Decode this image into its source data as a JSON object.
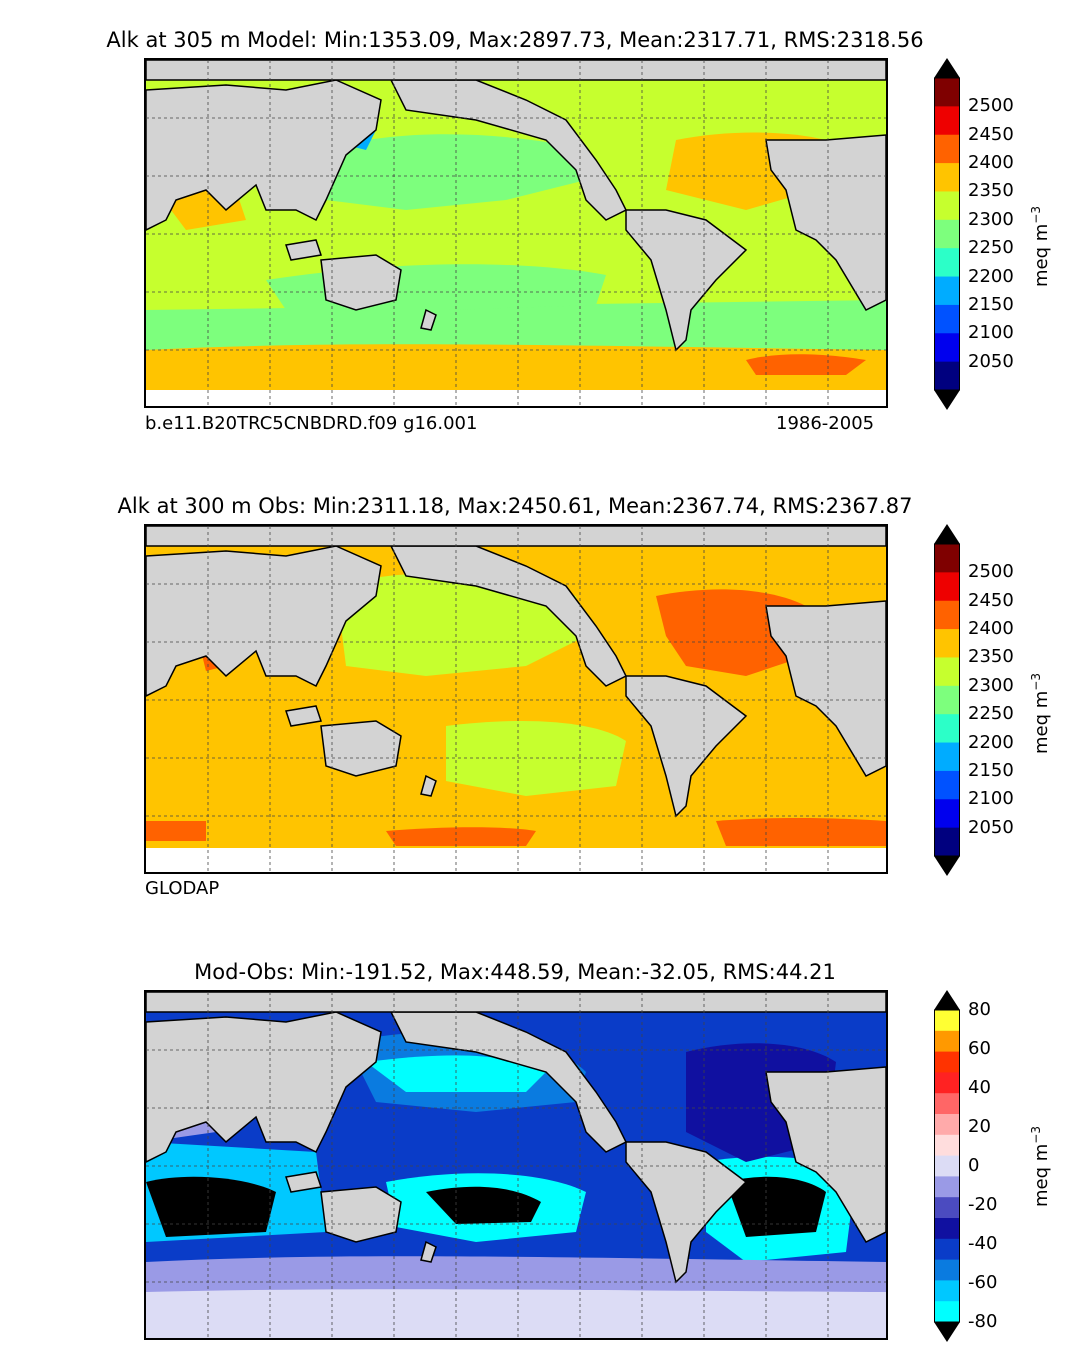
{
  "panels": [
    {
      "title": "Alk at 305 m Model: Min:1353.09, Max:2897.73, Mean:2317.71, RMS:2318.56",
      "note_left": "b.e11.B20TRC5CNBDRD.f09 g16.001",
      "note_right": "1986-2005",
      "unit": "meq m",
      "unit_exp": "−3",
      "ticks": [
        "2500",
        "2450",
        "2400",
        "2350",
        "2300",
        "2250",
        "2200",
        "2150",
        "2100",
        "2050"
      ],
      "colors": [
        "#7f0000",
        "#ee0000",
        "#ff6200",
        "#ffc400",
        "#c6ff2e",
        "#7dff7d",
        "#2cffc8",
        "#00acff",
        "#0052ff",
        "#0000ee",
        "#00007f"
      ]
    },
    {
      "title": "Alk at 300 m Obs: Min:2311.18, Max:2450.61, Mean:2367.74, RMS:2367.87",
      "note_left": "GLODAP",
      "note_right": "",
      "unit": "meq m",
      "unit_exp": "−3",
      "ticks": [
        "2500",
        "2450",
        "2400",
        "2350",
        "2300",
        "2250",
        "2200",
        "2150",
        "2100",
        "2050"
      ],
      "colors": [
        "#7f0000",
        "#ee0000",
        "#ff6200",
        "#ffc400",
        "#c6ff2e",
        "#7dff7d",
        "#2cffc8",
        "#00acff",
        "#0052ff",
        "#0000ee",
        "#00007f"
      ]
    },
    {
      "title": "Mod-Obs: Min:-191.52, Max:448.59, Mean:-32.05, RMS:44.21",
      "note_left": "",
      "note_right": "",
      "unit": "meq m",
      "unit_exp": "−3",
      "ticks": [
        "80",
        "60",
        "40",
        "20",
        "0",
        "-20",
        "-40",
        "-60",
        "-80"
      ],
      "colors": [
        "#ffff33",
        "#ff9900",
        "#ff3300",
        "#ff2222",
        "#ff6666",
        "#ffaaaa",
        "#ffdddd",
        "#dcdcf5",
        "#9a9ae6",
        "#4b4bc0",
        "#1010a0",
        "#0a3cc8",
        "#0a7be0",
        "#00c8ff",
        "#00ffff"
      ]
    }
  ]
}
